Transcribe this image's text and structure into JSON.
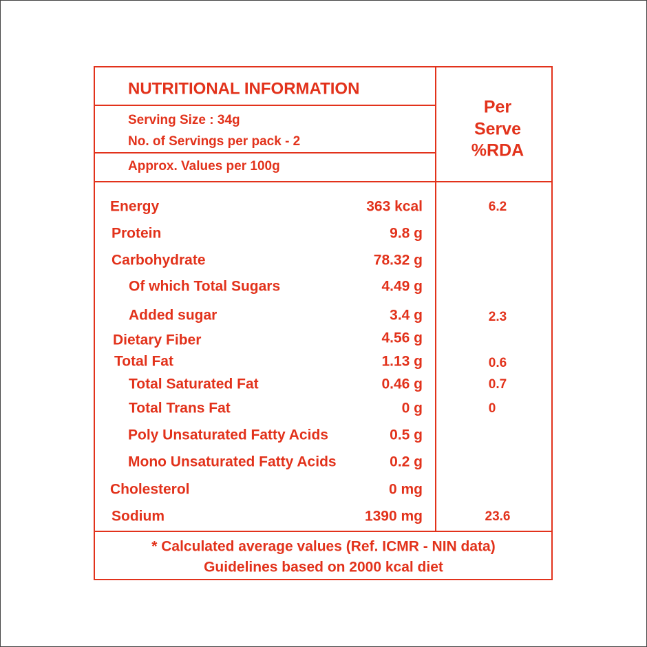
{
  "header": {
    "title": "NUTRITIONAL INFORMATION",
    "serving_size": "Serving Size : 34g",
    "servings_per_pack": "No. of Servings per pack - 2",
    "approx_values": "Approx. Values per 100g"
  },
  "rda_header": [
    "Per",
    "Serve",
    "%RDA"
  ],
  "rows": [
    {
      "name": "Energy",
      "amount": "363 kcal",
      "rda": "6.2"
    },
    {
      "name": "Protein",
      "amount": "9.8 g"
    },
    {
      "name": "Carbohydrate",
      "amount": "78.32 g"
    },
    {
      "name": "Of which Total Sugars",
      "amount": "4.49 g"
    },
    {
      "name": "Added sugar",
      "amount": "3.4 g",
      "rda": "2.3"
    },
    {
      "name": "Dietary Fiber",
      "amount": "4.56 g"
    },
    {
      "name": "Total Fat",
      "amount": "1.13 g",
      "rda": "0.6"
    },
    {
      "name": "Total Saturated Fat",
      "amount": "0.46 g",
      "rda": "0.7"
    },
    {
      "name": "Total Trans Fat",
      "amount": "0 g",
      "rda": "0"
    },
    {
      "name": "Poly Unsaturated Fatty Acids",
      "amount": "0.5 g"
    },
    {
      "name": "Mono Unsaturated Fatty Acids",
      "amount": "0.2 g"
    },
    {
      "name": "Cholesterol",
      "amount": "0 mg"
    },
    {
      "name": "Sodium",
      "amount": "1390 mg",
      "rda": "23.6"
    }
  ],
  "footer": [
    "* Calculated average values (Ref. ICMR - NIN data)",
    "Guidelines based on 2000 kcal diet"
  ]
}
